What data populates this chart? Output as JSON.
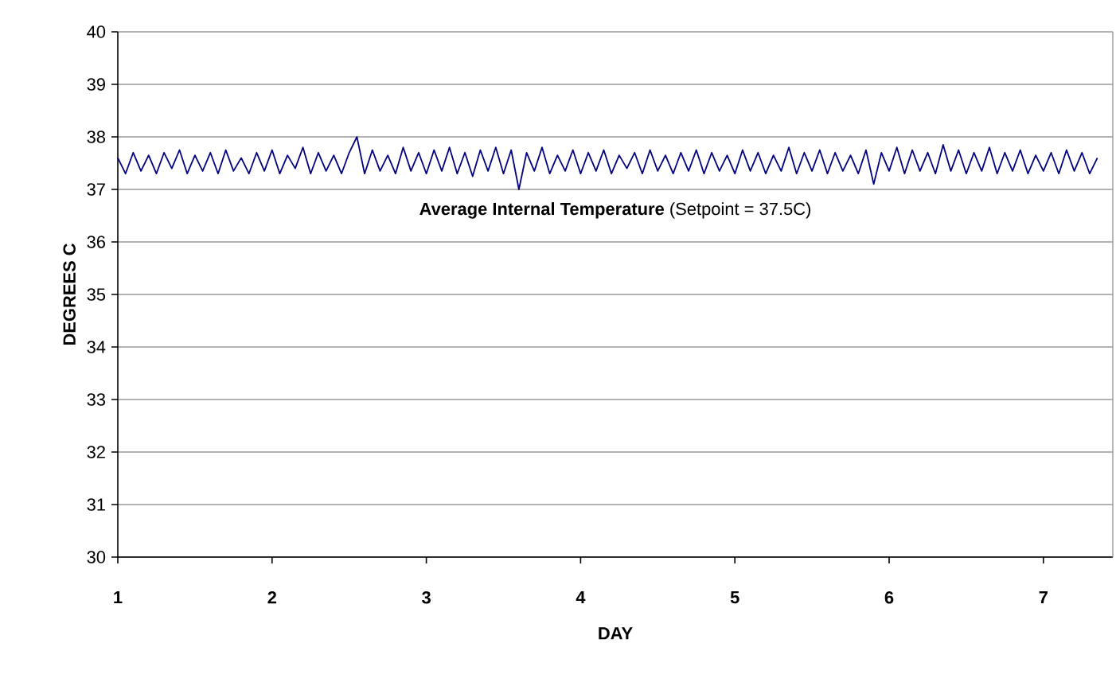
{
  "chart_data": {
    "type": "line",
    "xlabel": "DAY",
    "ylabel": "DEGREES C",
    "annotations": [
      "**Average Internal Temperature** (Setpoint = 37.5C)"
    ],
    "xlim": [
      1,
      7.45
    ],
    "xticks": [
      1,
      2,
      3,
      4,
      5,
      6,
      7
    ],
    "ylim": [
      30,
      40
    ],
    "yticks": [
      30,
      31,
      32,
      33,
      34,
      35,
      36,
      37,
      38,
      39,
      40
    ],
    "grid": "y",
    "marker": "none",
    "line_style": "solid",
    "series": [
      {
        "color": "#000080",
        "x": [
          1,
          1.05,
          1.1,
          1.15,
          1.2,
          1.25,
          1.3,
          1.35,
          1.4,
          1.45,
          1.5,
          1.55,
          1.6,
          1.65,
          1.7,
          1.75,
          1.8,
          1.85,
          1.9,
          1.95,
          2,
          2.05,
          2.1,
          2.15,
          2.2,
          2.25,
          2.3,
          2.35,
          2.4,
          2.45,
          2.5,
          2.55,
          2.6,
          2.65,
          2.7,
          2.75,
          2.8,
          2.85,
          2.9,
          2.95,
          3,
          3.05,
          3.1,
          3.15,
          3.2,
          3.25,
          3.3,
          3.35,
          3.4,
          3.45,
          3.5,
          3.55,
          3.6,
          3.65,
          3.7,
          3.75,
          3.8,
          3.85,
          3.9,
          3.95,
          4,
          4.05,
          4.1,
          4.15,
          4.2,
          4.25,
          4.3,
          4.35,
          4.4,
          4.45,
          4.5,
          4.55,
          4.6,
          4.65,
          4.7,
          4.75,
          4.8,
          4.85,
          4.9,
          4.95,
          5,
          5.05,
          5.1,
          5.15,
          5.2,
          5.25,
          5.3,
          5.35,
          5.4,
          5.45,
          5.5,
          5.55,
          5.6,
          5.65,
          5.7,
          5.75,
          5.8,
          5.85,
          5.9,
          5.95,
          6,
          6.05,
          6.1,
          6.15,
          6.2,
          6.25,
          6.3,
          6.35,
          6.4,
          6.45,
          6.5,
          6.55,
          6.6,
          6.65,
          6.7,
          6.75,
          6.8,
          6.85,
          6.9,
          6.95,
          7,
          7.05,
          7.1,
          7.15,
          7.2,
          7.25,
          7.3,
          7.35
        ],
        "values": [
          37.6,
          37.3,
          37.7,
          37.35,
          37.65,
          37.3,
          37.7,
          37.4,
          37.75,
          37.3,
          37.65,
          37.35,
          37.7,
          37.3,
          37.75,
          37.35,
          37.6,
          37.3,
          37.7,
          37.35,
          37.75,
          37.3,
          37.65,
          37.4,
          37.8,
          37.3,
          37.7,
          37.35,
          37.65,
          37.3,
          37.7,
          38.0,
          37.3,
          37.75,
          37.35,
          37.65,
          37.3,
          37.8,
          37.35,
          37.7,
          37.3,
          37.75,
          37.35,
          37.8,
          37.3,
          37.7,
          37.25,
          37.75,
          37.35,
          37.8,
          37.3,
          37.75,
          37.0,
          37.7,
          37.35,
          37.8,
          37.3,
          37.65,
          37.35,
          37.75,
          37.3,
          37.7,
          37.35,
          37.75,
          37.3,
          37.65,
          37.4,
          37.7,
          37.3,
          37.75,
          37.35,
          37.65,
          37.3,
          37.7,
          37.35,
          37.75,
          37.3,
          37.7,
          37.35,
          37.65,
          37.3,
          37.75,
          37.35,
          37.7,
          37.3,
          37.65,
          37.35,
          37.8,
          37.3,
          37.7,
          37.35,
          37.75,
          37.3,
          37.7,
          37.35,
          37.65,
          37.3,
          37.75,
          37.1,
          37.7,
          37.35,
          37.8,
          37.3,
          37.75,
          37.35,
          37.7,
          37.3,
          37.85,
          37.35,
          37.75,
          37.3,
          37.7,
          37.35,
          37.8,
          37.3,
          37.7,
          37.35,
          37.75,
          37.3,
          37.65,
          37.35,
          37.7,
          37.3,
          37.75,
          37.35,
          37.7,
          37.3,
          37.6
        ]
      }
    ]
  }
}
